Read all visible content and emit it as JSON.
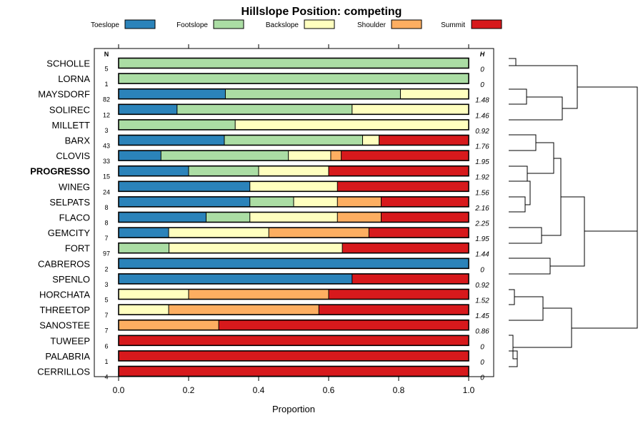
{
  "chart_data": {
    "type": "bar",
    "orientation": "horizontal",
    "stacked": true,
    "title": "Hillslope Position: competing",
    "xlabel": "Proportion",
    "xlim": [
      0,
      1
    ],
    "xticks": [
      "0.0",
      "0.2",
      "0.4",
      "0.6",
      "0.8",
      "1.0"
    ],
    "n_header": "N",
    "h_header": "H",
    "legend": [
      {
        "name": "Toeslope",
        "color": "#2b83ba"
      },
      {
        "name": "Footslope",
        "color": "#abdda4"
      },
      {
        "name": "Backslope",
        "color": "#ffffbf"
      },
      {
        "name": "Shoulder",
        "color": "#fdae61"
      },
      {
        "name": "Summit",
        "color": "#d7191c"
      }
    ],
    "rows": [
      {
        "name": "SCHOLLE",
        "bold": false,
        "n": "5",
        "h": "0",
        "values": [
          0,
          1,
          0,
          0,
          0
        ]
      },
      {
        "name": "LORNA",
        "bold": false,
        "n": "1",
        "h": "0",
        "values": [
          0,
          1,
          0,
          0,
          0
        ]
      },
      {
        "name": "MAYSDORF",
        "bold": false,
        "n": "82",
        "h": "1.48",
        "values": [
          0.305,
          0.5,
          0.195,
          0,
          0
        ]
      },
      {
        "name": "SOLIREC",
        "bold": false,
        "n": "12",
        "h": "1.46",
        "values": [
          0.167,
          0.5,
          0.333,
          0,
          0
        ]
      },
      {
        "name": "MILLETT",
        "bold": false,
        "n": "3",
        "h": "0.92",
        "values": [
          0,
          0.333,
          0.667,
          0,
          0
        ]
      },
      {
        "name": "BARX",
        "bold": false,
        "n": "43",
        "h": "1.76",
        "values": [
          0.302,
          0.395,
          0.047,
          0,
          0.256
        ]
      },
      {
        "name": "CLOVIS",
        "bold": false,
        "n": "33",
        "h": "1.95",
        "values": [
          0.121,
          0.364,
          0.121,
          0.03,
          0.364
        ]
      },
      {
        "name": "PROGRESSO",
        "bold": true,
        "n": "15",
        "h": "1.92",
        "values": [
          0.2,
          0.2,
          0.2,
          0,
          0.4
        ]
      },
      {
        "name": "WINEG",
        "bold": false,
        "n": "24",
        "h": "1.56",
        "values": [
          0.375,
          0,
          0.25,
          0,
          0.375
        ]
      },
      {
        "name": "SELPATS",
        "bold": false,
        "n": "8",
        "h": "2.16",
        "values": [
          0.375,
          0.125,
          0.125,
          0.125,
          0.25
        ]
      },
      {
        "name": "FLACO",
        "bold": false,
        "n": "8",
        "h": "2.25",
        "values": [
          0.25,
          0.125,
          0.25,
          0.125,
          0.25
        ]
      },
      {
        "name": "GEMCITY",
        "bold": false,
        "n": "7",
        "h": "1.95",
        "values": [
          0.143,
          0,
          0.286,
          0.286,
          0.285
        ]
      },
      {
        "name": "FORT",
        "bold": false,
        "n": "97",
        "h": "1.44",
        "values": [
          0,
          0.144,
          0.495,
          0,
          0.361
        ]
      },
      {
        "name": "CABREROS",
        "bold": false,
        "n": "2",
        "h": "0",
        "values": [
          1,
          0,
          0,
          0,
          0
        ]
      },
      {
        "name": "SPENLO",
        "bold": false,
        "n": "3",
        "h": "0.92",
        "values": [
          0.667,
          0,
          0,
          0,
          0.333
        ]
      },
      {
        "name": "HORCHATA",
        "bold": false,
        "n": "5",
        "h": "1.52",
        "values": [
          0,
          0,
          0.2,
          0.4,
          0.4
        ]
      },
      {
        "name": "THREETOP",
        "bold": false,
        "n": "7",
        "h": "1.45",
        "values": [
          0,
          0,
          0.143,
          0.429,
          0.428
        ]
      },
      {
        "name": "SANOSTEE",
        "bold": false,
        "n": "7",
        "h": "0.86",
        "values": [
          0,
          0,
          0,
          0.286,
          0.714
        ]
      },
      {
        "name": "TUWEEP",
        "bold": false,
        "n": "6",
        "h": "0",
        "values": [
          0,
          0,
          0,
          0,
          1
        ]
      },
      {
        "name": "PALABRIA",
        "bold": false,
        "n": "1",
        "h": "0",
        "values": [
          0,
          0,
          0,
          0,
          1
        ]
      },
      {
        "name": "CERRILLOS",
        "bold": false,
        "n": "4",
        "h": "0",
        "values": [
          0,
          0,
          0,
          0,
          1
        ]
      }
    ]
  }
}
